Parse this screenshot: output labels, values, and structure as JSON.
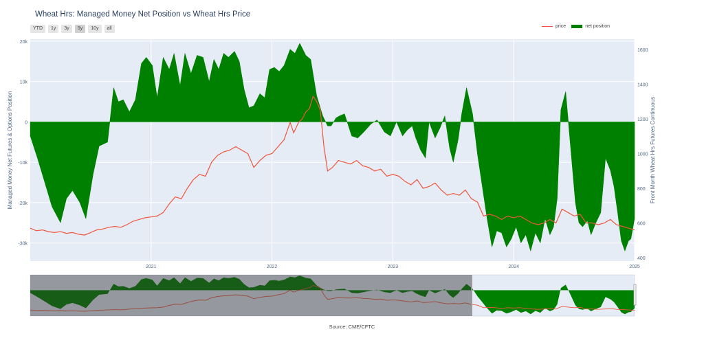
{
  "title": "Wheat Hrs: Managed Money Net Position vs Wheat Hrs Price",
  "range_buttons": [
    {
      "label": "YTD",
      "active": false
    },
    {
      "label": "1y",
      "active": false
    },
    {
      "label": "3y",
      "active": false
    },
    {
      "label": "5y",
      "active": true
    },
    {
      "label": "10y",
      "active": false
    },
    {
      "label": "all",
      "active": false
    }
  ],
  "legend": {
    "price_label": "price",
    "net_label": "net position"
  },
  "source": "Source: CME/CFTC",
  "colors": {
    "price": "#ef553b",
    "net": "#008000",
    "plot_bg": "#e5ecf6"
  },
  "chart_data": {
    "type": "area",
    "title": "Wheat Hrs: Managed Money Net Position vs Wheat Hrs Price",
    "ylabel_left": "Managed Money Net Futures & Options Position",
    "ylabel_right": "Front Month Wheat Hrs Futures Continuous",
    "x_ticks": [
      "2021",
      "2022",
      "2023",
      "2024",
      "2025"
    ],
    "y_left_ticks": [
      "20k",
      "10k",
      "0",
      "-10k",
      "-20k",
      "-30k"
    ],
    "y_left_range": [
      -34500,
      20500
    ],
    "y_right_ticks": [
      "1600",
      "1400",
      "1200",
      "1000",
      "800",
      "600",
      "400"
    ],
    "y_right_range": [
      380,
      1660
    ],
    "x_range": [
      2020.0,
      2025.0
    ],
    "grid": true,
    "legend_position": "top-right",
    "series": [
      {
        "name": "net position",
        "axis": "left",
        "x": [
          2020.0,
          2020.06,
          2020.12,
          2020.18,
          2020.25,
          2020.3,
          2020.35,
          2020.41,
          2020.46,
          2020.52,
          2020.57,
          2020.64,
          2020.69,
          2020.73,
          2020.77,
          2020.82,
          2020.87,
          2020.92,
          2020.96,
          2021.01,
          2021.05,
          2021.1,
          2021.15,
          2021.19,
          2021.24,
          2021.28,
          2021.33,
          2021.38,
          2021.43,
          2021.48,
          2021.52,
          2021.56,
          2021.6,
          2021.64,
          2021.69,
          2021.73,
          2021.77,
          2021.81,
          2021.85,
          2021.9,
          2021.94,
          2021.98,
          2022.02,
          2022.06,
          2022.1,
          2022.15,
          2022.19,
          2022.23,
          2022.28,
          2022.32,
          2022.37,
          2022.42,
          2022.46,
          2022.49,
          2022.53,
          2022.56,
          2022.6,
          2022.66,
          2022.71,
          2022.76,
          2022.82,
          2022.87,
          2022.93,
          2022.98,
          2023.03,
          2023.08,
          2023.12,
          2023.16,
          2023.19,
          2023.23,
          2023.27,
          2023.3,
          2023.35,
          2023.39,
          2023.43,
          2023.47,
          2023.5,
          2023.54,
          2023.57,
          2023.61,
          2023.66,
          2023.7,
          2023.74,
          2023.78,
          2023.82,
          2023.86,
          2023.9,
          2023.94,
          2023.98,
          2024.02,
          2024.06,
          2024.1,
          2024.14,
          2024.18,
          2024.22,
          2024.26,
          2024.3,
          2024.33,
          2024.36,
          2024.39,
          2024.43,
          2024.47,
          2024.51,
          2024.54,
          2024.57,
          2024.61,
          2024.64,
          2024.68,
          2024.72,
          2024.76,
          2024.8,
          2024.83,
          2024.86,
          2024.89,
          2024.92,
          2024.95,
          2024.97,
          2025.0
        ],
        "values": [
          -3500,
          -9000,
          -15000,
          -21000,
          -25000,
          -19000,
          -17000,
          -20000,
          -24000,
          -13000,
          -6000,
          -5000,
          8500,
          5000,
          5500,
          2500,
          5500,
          14500,
          16000,
          14000,
          6000,
          16000,
          13000,
          17000,
          9000,
          17000,
          12000,
          16500,
          16000,
          10000,
          15500,
          13000,
          17000,
          16000,
          17500,
          15000,
          8000,
          3500,
          4000,
          7000,
          6000,
          13000,
          13500,
          12500,
          14000,
          18000,
          17000,
          19500,
          16500,
          15500,
          6500,
          1500,
          -1000,
          -1000,
          1000,
          1500,
          2000,
          -3500,
          -4000,
          -2500,
          -500,
          500,
          -2500,
          -3500,
          0,
          -3500,
          -2000,
          -1000,
          -4000,
          -7000,
          -9000,
          0,
          -4000,
          -1500,
          1500,
          -6500,
          -10000,
          -4500,
          2000,
          8500,
          2000,
          -8000,
          -16000,
          -24000,
          -31000,
          -27000,
          -27500,
          -31000,
          -29000,
          -26000,
          -30000,
          -28000,
          -32000,
          -27500,
          -30000,
          -24000,
          -28000,
          -26000,
          -19000,
          3000,
          7500,
          -6000,
          -20000,
          -25000,
          -26000,
          -24500,
          -28000,
          -25000,
          -22500,
          -9000,
          -12000,
          -16000,
          -22500,
          -29500,
          -32000,
          -29500,
          -29000,
          -24000
        ],
        "fill": "tozeroy"
      },
      {
        "name": "price",
        "axis": "right",
        "x": [
          2020.0,
          2020.05,
          2020.1,
          2020.15,
          2020.2,
          2020.25,
          2020.3,
          2020.35,
          2020.4,
          2020.45,
          2020.5,
          2020.55,
          2020.6,
          2020.65,
          2020.7,
          2020.75,
          2020.8,
          2020.85,
          2020.9,
          2020.95,
          2021.0,
          2021.05,
          2021.1,
          2021.15,
          2021.2,
          2021.25,
          2021.3,
          2021.35,
          2021.4,
          2021.45,
          2021.5,
          2021.55,
          2021.6,
          2021.65,
          2021.7,
          2021.75,
          2021.8,
          2021.85,
          2021.9,
          2021.95,
          2022.0,
          2022.05,
          2022.1,
          2022.15,
          2022.18,
          2022.22,
          2022.25,
          2022.28,
          2022.31,
          2022.34,
          2022.37,
          2022.4,
          2022.43,
          2022.46,
          2022.5,
          2022.55,
          2022.6,
          2022.65,
          2022.7,
          2022.75,
          2022.8,
          2022.85,
          2022.9,
          2022.95,
          2023.0,
          2023.05,
          2023.1,
          2023.15,
          2023.2,
          2023.25,
          2023.3,
          2023.35,
          2023.4,
          2023.45,
          2023.5,
          2023.55,
          2023.6,
          2023.65,
          2023.7,
          2023.75,
          2023.8,
          2023.85,
          2023.9,
          2023.95,
          2024.0,
          2024.05,
          2024.1,
          2024.15,
          2024.2,
          2024.25,
          2024.3,
          2024.35,
          2024.4,
          2024.45,
          2024.5,
          2024.55,
          2024.6,
          2024.65,
          2024.7,
          2024.75,
          2024.8,
          2024.85,
          2024.9,
          2024.95,
          2025.0
        ],
        "values": [
          570,
          555,
          560,
          550,
          545,
          550,
          540,
          545,
          535,
          530,
          545,
          560,
          565,
          575,
          580,
          575,
          590,
          610,
          620,
          630,
          635,
          640,
          660,
          710,
          750,
          740,
          800,
          850,
          880,
          870,
          950,
          990,
          1010,
          1020,
          1040,
          1020,
          1000,
          920,
          960,
          990,
          1000,
          1040,
          1080,
          1180,
          1120,
          1180,
          1200,
          1240,
          1260,
          1330,
          1300,
          1250,
          1040,
          900,
          920,
          960,
          950,
          940,
          960,
          930,
          920,
          900,
          910,
          870,
          880,
          870,
          840,
          820,
          850,
          800,
          810,
          830,
          790,
          760,
          770,
          760,
          790,
          740,
          720,
          640,
          650,
          640,
          620,
          640,
          630,
          640,
          620,
          600,
          590,
          600,
          620,
          600,
          680,
          660,
          640,
          650,
          600,
          600,
          590,
          600,
          620,
          590,
          580,
          570,
          560
        ]
      }
    ]
  }
}
